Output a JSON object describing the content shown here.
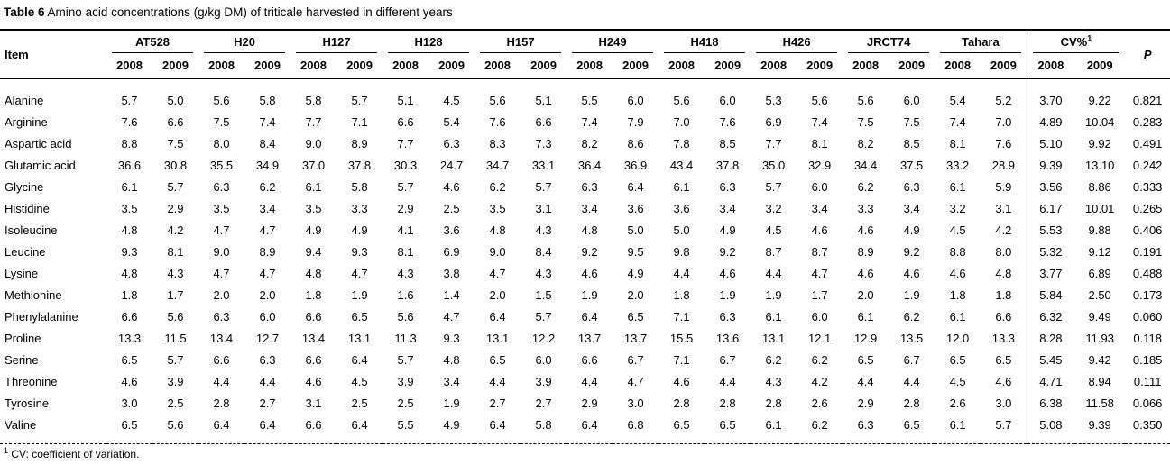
{
  "title": {
    "label": "Table 6",
    "caption": "Amino acid concentrations (g/kg DM) of triticale harvested in different years"
  },
  "table": {
    "item_header": "Item",
    "p_header": "P",
    "cv": {
      "name": "CV%",
      "sup": "1",
      "years": [
        "2008",
        "2009"
      ]
    },
    "groups": [
      {
        "name": "AT528",
        "years": [
          "2008",
          "2009"
        ]
      },
      {
        "name": "H20",
        "years": [
          "2008",
          "2009"
        ]
      },
      {
        "name": "H127",
        "years": [
          "2008",
          "2009"
        ]
      },
      {
        "name": "H128",
        "years": [
          "2008",
          "2009"
        ]
      },
      {
        "name": "H157",
        "years": [
          "2008",
          "2009"
        ]
      },
      {
        "name": "H249",
        "years": [
          "2008",
          "2009"
        ]
      },
      {
        "name": "H418",
        "years": [
          "2008",
          "2009"
        ]
      },
      {
        "name": "H426",
        "years": [
          "2008",
          "2009"
        ]
      },
      {
        "name": "JRCT74",
        "years": [
          "2008",
          "2009"
        ]
      },
      {
        "name": "Tahara",
        "years": [
          "2008",
          "2009"
        ]
      }
    ],
    "rows": [
      {
        "item": "Alanine",
        "values": [
          "5.7",
          "5.0",
          "5.6",
          "5.8",
          "5.8",
          "5.7",
          "5.1",
          "4.5",
          "5.6",
          "5.1",
          "5.5",
          "6.0",
          "5.6",
          "6.0",
          "5.3",
          "5.6",
          "5.6",
          "6.0",
          "5.4",
          "5.2"
        ],
        "cv": [
          "3.70",
          "9.22"
        ],
        "p": "0.821"
      },
      {
        "item": "Arginine",
        "values": [
          "7.6",
          "6.6",
          "7.5",
          "7.4",
          "7.7",
          "7.1",
          "6.6",
          "5.4",
          "7.6",
          "6.6",
          "7.4",
          "7.9",
          "7.0",
          "7.6",
          "6.9",
          "7.4",
          "7.5",
          "7.5",
          "7.4",
          "7.0"
        ],
        "cv": [
          "4.89",
          "10.04"
        ],
        "p": "0.283"
      },
      {
        "item": "Aspartic acid",
        "values": [
          "8.8",
          "7.5",
          "8.0",
          "8.4",
          "9.0",
          "8.9",
          "7.7",
          "6.3",
          "8.3",
          "7.3",
          "8.2",
          "8.6",
          "7.8",
          "8.5",
          "7.7",
          "8.1",
          "8.2",
          "8.5",
          "8.1",
          "7.6"
        ],
        "cv": [
          "5.10",
          "9.92"
        ],
        "p": "0.491"
      },
      {
        "item": "Glutamic acid",
        "values": [
          "36.6",
          "30.8",
          "35.5",
          "34.9",
          "37.0",
          "37.8",
          "30.3",
          "24.7",
          "34.7",
          "33.1",
          "36.4",
          "36.9",
          "43.4",
          "37.8",
          "35.0",
          "32.9",
          "34.4",
          "37.5",
          "33.2",
          "28.9"
        ],
        "cv": [
          "9.39",
          "13.10"
        ],
        "p": "0.242"
      },
      {
        "item": "Glycine",
        "values": [
          "6.1",
          "5.7",
          "6.3",
          "6.2",
          "6.1",
          "5.8",
          "5.7",
          "4.6",
          "6.2",
          "5.7",
          "6.3",
          "6.4",
          "6.1",
          "6.3",
          "5.7",
          "6.0",
          "6.2",
          "6.3",
          "6.1",
          "5.9"
        ],
        "cv": [
          "3.56",
          "8.86"
        ],
        "p": "0.333"
      },
      {
        "item": "Histidine",
        "values": [
          "3.5",
          "2.9",
          "3.5",
          "3.4",
          "3.5",
          "3.3",
          "2.9",
          "2.5",
          "3.5",
          "3.1",
          "3.4",
          "3.6",
          "3.6",
          "3.4",
          "3.2",
          "3.4",
          "3.3",
          "3.4",
          "3.2",
          "3.1"
        ],
        "cv": [
          "6.17",
          "10.01"
        ],
        "p": "0.265"
      },
      {
        "item": "Isoleucine",
        "values": [
          "4.8",
          "4.2",
          "4.7",
          "4.7",
          "4.9",
          "4.9",
          "4.1",
          "3.6",
          "4.8",
          "4.3",
          "4.8",
          "5.0",
          "5.0",
          "4.9",
          "4.5",
          "4.6",
          "4.6",
          "4.9",
          "4.5",
          "4.2"
        ],
        "cv": [
          "5.53",
          "9.88"
        ],
        "p": "0.406"
      },
      {
        "item": "Leucine",
        "values": [
          "9.3",
          "8.1",
          "9.0",
          "8.9",
          "9.4",
          "9.3",
          "8.1",
          "6.9",
          "9.0",
          "8.4",
          "9.2",
          "9.5",
          "9.8",
          "9.2",
          "8.7",
          "8.7",
          "8.9",
          "9.2",
          "8.8",
          "8.0"
        ],
        "cv": [
          "5.32",
          "9.12"
        ],
        "p": "0.191"
      },
      {
        "item": "Lysine",
        "values": [
          "4.8",
          "4.3",
          "4.7",
          "4.7",
          "4.8",
          "4.7",
          "4.3",
          "3.8",
          "4.7",
          "4.3",
          "4.6",
          "4.9",
          "4.4",
          "4.6",
          "4.4",
          "4.7",
          "4.6",
          "4.6",
          "4.6",
          "4.8"
        ],
        "cv": [
          "3.77",
          "6.89"
        ],
        "p": "0.488"
      },
      {
        "item": "Methionine",
        "values": [
          "1.8",
          "1.7",
          "2.0",
          "2.0",
          "1.8",
          "1.9",
          "1.6",
          "1.4",
          "2.0",
          "1.5",
          "1.9",
          "2.0",
          "1.8",
          "1.9",
          "1.9",
          "1.7",
          "2.0",
          "1.9",
          "1.8",
          "1.8"
        ],
        "cv": [
          "5.84",
          "2.50"
        ],
        "p": "0.173"
      },
      {
        "item": "Phenylalanine",
        "values": [
          "6.6",
          "5.6",
          "6.3",
          "6.0",
          "6.6",
          "6.5",
          "5.6",
          "4.7",
          "6.4",
          "5.7",
          "6.4",
          "6.5",
          "7.1",
          "6.3",
          "6.1",
          "6.0",
          "6.1",
          "6.2",
          "6.1",
          "6.6"
        ],
        "cv": [
          "6.32",
          "9.49"
        ],
        "p": "0.060"
      },
      {
        "item": "Proline",
        "values": [
          "13.3",
          "11.5",
          "13.4",
          "12.7",
          "13.4",
          "13.1",
          "11.3",
          "9.3",
          "13.1",
          "12.2",
          "13.7",
          "13.7",
          "15.5",
          "13.6",
          "13.1",
          "12.1",
          "12.9",
          "13.5",
          "12.0",
          "13.3"
        ],
        "cv": [
          "8.28",
          "11.93"
        ],
        "p": "0.118"
      },
      {
        "item": "Serine",
        "values": [
          "6.5",
          "5.7",
          "6.6",
          "6.3",
          "6.6",
          "6.4",
          "5.7",
          "4.8",
          "6.5",
          "6.0",
          "6.6",
          "6.7",
          "7.1",
          "6.7",
          "6.2",
          "6.2",
          "6.5",
          "6.7",
          "6.5",
          "6.5"
        ],
        "cv": [
          "5.45",
          "9.42"
        ],
        "p": "0.185"
      },
      {
        "item": "Threonine",
        "values": [
          "4.6",
          "3.9",
          "4.4",
          "4.4",
          "4.6",
          "4.5",
          "3.9",
          "3.4",
          "4.4",
          "3.9",
          "4.4",
          "4.7",
          "4.6",
          "4.4",
          "4.3",
          "4.2",
          "4.4",
          "4.4",
          "4.5",
          "4.6"
        ],
        "cv": [
          "4.71",
          "8.94"
        ],
        "p": "0.111"
      },
      {
        "item": "Tyrosine",
        "values": [
          "3.0",
          "2.5",
          "2.8",
          "2.7",
          "3.1",
          "2.5",
          "2.5",
          "1.9",
          "2.7",
          "2.7",
          "2.9",
          "3.0",
          "2.8",
          "2.8",
          "2.8",
          "2.6",
          "2.9",
          "2.8",
          "2.6",
          "3.0"
        ],
        "cv": [
          "6.38",
          "11.58"
        ],
        "p": "0.066"
      },
      {
        "item": "Valine",
        "values": [
          "6.5",
          "5.6",
          "6.4",
          "6.4",
          "6.6",
          "6.4",
          "5.5",
          "4.9",
          "6.4",
          "5.8",
          "6.4",
          "6.8",
          "6.5",
          "6.5",
          "6.1",
          "6.2",
          "6.3",
          "6.5",
          "6.1",
          "5.7"
        ],
        "cv": [
          "5.08",
          "9.39"
        ],
        "p": "0.350"
      }
    ]
  },
  "footnote": {
    "sup": "1",
    "text": "CV: coefficient of variation."
  }
}
